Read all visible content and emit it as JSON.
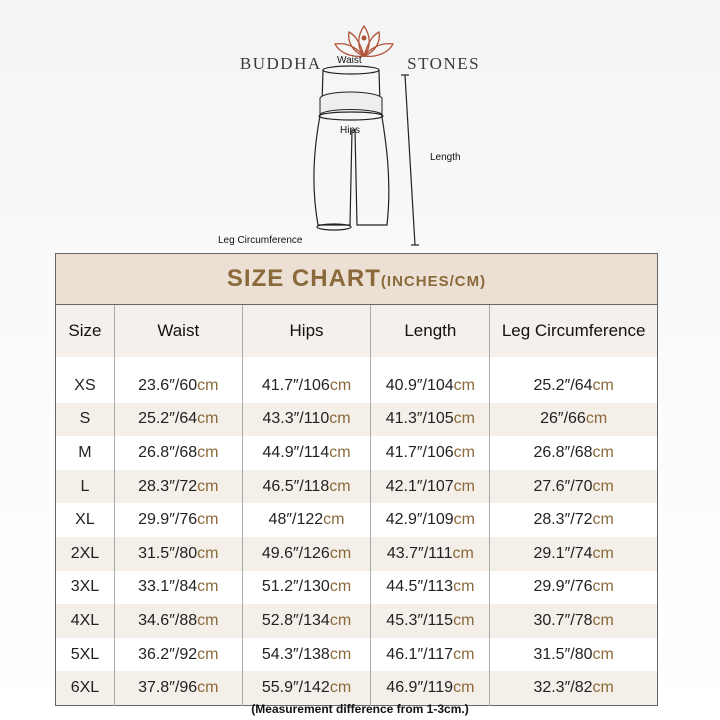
{
  "brand": {
    "left": "BUDDHA",
    "right": "STONES"
  },
  "diagram": {
    "waist": "Waist",
    "hips": "Hips",
    "length": "Length",
    "leg": "Leg Circumference"
  },
  "table": {
    "title": "SIZE CHART",
    "title_units": "(INCHES/CM)",
    "headers": [
      "Size",
      "Waist",
      "Hips",
      "Length",
      "Leg Circumference"
    ],
    "rows": [
      [
        "XS",
        "23.6″/60",
        "41.7″/106",
        "40.9″/104",
        "25.2″/64"
      ],
      [
        "S",
        "25.2″/64",
        "43.3″/110",
        "41.3″/105",
        "26″/66"
      ],
      [
        "M",
        "26.8″/68",
        "44.9″/114",
        "41.7″/106",
        "26.8″/68"
      ],
      [
        "L",
        "28.3″/72",
        "46.5″/118",
        "42.1″/107",
        "27.6″/70"
      ],
      [
        "XL",
        "29.9″/76",
        "48″/122",
        "42.9″/109",
        "28.3″/72"
      ],
      [
        "2XL",
        "31.5″/80",
        "49.6″/126",
        "43.7″/111",
        "29.1″/74"
      ],
      [
        "3XL",
        "33.1″/84",
        "51.2″/130",
        "44.5″/113",
        "29.9″/76"
      ],
      [
        "4XL",
        "34.6″/88",
        "52.8″/134",
        "45.3″/115",
        "30.7″/78"
      ],
      [
        "5XL",
        "36.2″/92",
        "54.3″/138",
        "46.1″/117",
        "31.5″/80"
      ],
      [
        "6XL",
        "37.8″/96",
        "55.9″/142",
        "46.9″/119",
        "32.3″/82"
      ]
    ],
    "unit": "cm"
  },
  "note": "(Measurement difference from 1-3cm.)",
  "colors": {
    "accent": "#8a6a3a",
    "title_bg": "#ecdfd3",
    "stripe": "#f5efe9"
  }
}
